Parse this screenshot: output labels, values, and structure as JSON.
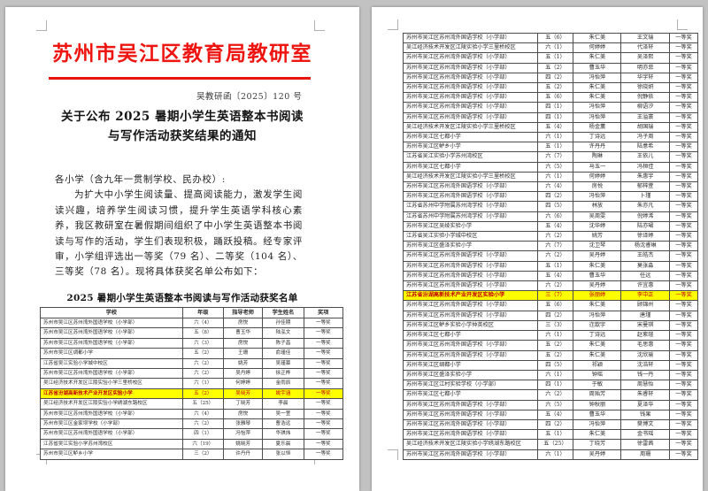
{
  "colors": {
    "header_red": "#e8130c",
    "highlight_bg": "#ffff00",
    "highlight_text": "#c00000"
  },
  "page1": {
    "agency_title": "苏州市吴江区教育局教研室",
    "doc_number": "吴教研函〔2025〕120 号",
    "title_line1": "关于公布 2025 暑期小学生英语整本书阅读",
    "title_line2": "与写作活动获奖结果的通知",
    "salutation": "各小学（含九年一贯制学校、民办校）:",
    "paragraph": "为扩大中小学生阅读量、提高阅读能力，激发学生阅读兴趣，培养学生阅读习惯，提升学生英语学科核心素养，我区教研室在暑假期间组织了中小学生英语整本书阅读与写作的活动，学生们表现积极，踊跃投稿。经专家评审，小学组评选出一等奖（79 名）、二等奖（104 名）、三等奖（78 名）。现将具体获奖名单公布如下：",
    "table_title": "2025 暑期小学生英语整本书阅读与写作活动获奖名单",
    "table": {
      "headers": [
        "学校",
        "年级",
        "指导老师",
        "学生姓名",
        "奖项"
      ],
      "highlight_index": 7,
      "rows": [
        [
          "苏州市吴江区苏州湾外国语学校（小学部）",
          "六（4）",
          "房悦",
          "孙佳期",
          "一等奖"
        ],
        [
          "苏州市吴江区苏州湾外国语学校（小学部）",
          "五（8）",
          "曹玉华",
          "陆泓文",
          "一等奖"
        ],
        [
          "苏州市吴江区苏州湾外国语学校（小学部）",
          "六（3）",
          "房悦",
          "陈子昌",
          "一等奖"
        ],
        [
          "苏州市吴江区绸都小学",
          "五（2）",
          "王珊",
          "俞瑾佳",
          "一等奖"
        ],
        [
          "江苏省吴江实验小学城中校区",
          "六（2）",
          "姚芳",
          "吴瑾慕",
          "一等奖"
        ],
        [
          "苏州市吴江区苏州湾外国语学校（小学部）",
          "六（2）",
          "吴丹婷",
          "徐正桦",
          "一等奖"
        ],
        [
          "吴江经济技术开发区江陵实验小学三里桥校区",
          "六（1）",
          "何婷婷",
          "金雨辰",
          "一等奖"
        ],
        [
          "江苏省汾湖高新技术产业开发区实验小学",
          "五（2）",
          "吴晓芳",
          "姚宇涵",
          "一等奖"
        ],
        [
          "吴江经济技术开发区江陵实验小学绣湖东路校区",
          "五（25）",
          "丁晓芳",
          "李晨",
          "一等奖"
        ],
        [
          "苏州市吴江区苏州湾外国语学校（小学部）",
          "六（4）",
          "房悦",
          "吴一萱",
          "一等奖"
        ],
        [
          "苏州市吴江区金家坝学校（小学部）",
          "六（2）",
          "张雅琴",
          "曹浩远",
          "一等奖"
        ],
        [
          "苏州市吴江区苏州湾外国语学校（小学部）",
          "四（1）",
          "冯怡萍",
          "华琪炜",
          "一等奖"
        ],
        [
          "江苏省吴江实验小学苏州湾校区",
          "六（19）",
          "姚晓芳",
          "夏乐晨",
          "一等奖"
        ],
        [
          "苏州市吴江区鲈乡小学",
          "三（2）",
          "许丹丹",
          "张以恒",
          "一等奖"
        ]
      ]
    }
  },
  "page2": {
    "table": {
      "highlight_index": 26,
      "rows": [
        [
          "苏州市吴江区苏州湾外国语学校（小学部）",
          "五（6）",
          "朱仁美",
          "王文瑞",
          "一等奖"
        ],
        [
          "吴江经济技术开发区江陵实验小学三里桥校区",
          "六（1）",
          "何婷婷",
          "代泽轩",
          "一等奖"
        ],
        [
          "苏州市吴江区苏州湾外国语学校（小学部）",
          "五（1）",
          "朱仁美",
          "吴泽熙",
          "一等奖"
        ],
        [
          "苏州市吴江区苏州湾外国语学校（小学部）",
          "五（2）",
          "曹玉华",
          "明亦菲",
          "一等奖"
        ],
        [
          "苏州市吴江区苏州湾外国语学校（小学部）",
          "四（2）",
          "冯怡萍",
          "华宇轩",
          "一等奖"
        ],
        [
          "苏州市吴江区苏州湾外国语学校（小学部）",
          "五（2）",
          "朱仁美",
          "徐晓妍",
          "一等奖"
        ],
        [
          "苏州市吴江区苏州湾外国语学校（小学部）",
          "五（6）",
          "朱仁美",
          "倪静依",
          "一等奖"
        ],
        [
          "苏州市吴江区苏州湾外国语学校（小学部）",
          "四（1）",
          "冯怡萍",
          "柳语汐",
          "一等奖"
        ],
        [
          "苏州市吴江区苏州湾外国语学校（小学部）",
          "四（1）",
          "冯怡萍",
          "王溢寰",
          "一等奖"
        ],
        [
          "吴江经济技术开发区江陵实验小学三里桥校区",
          "五（4）",
          "杨金薰",
          "胡国瑞",
          "一等奖"
        ],
        [
          "苏州市吴江区七都小学",
          "六（1）",
          "丁诗远",
          "冯子周",
          "一等奖"
        ],
        [
          "苏州市吴江区鲈乡小学",
          "五（1）",
          "许丹丹",
          "陆意希",
          "一等奖"
        ],
        [
          "江苏省吴江实验小学苏州湾校区",
          "六（7）",
          "陶琳",
          "王依儿",
          "一等奖"
        ],
        [
          "苏州市吴江区七都小学",
          "六（5）",
          "马玉一",
          "冯桓佳",
          "一等奖"
        ],
        [
          "吴江经济技术开发区江陵实验小学三里桥校区",
          "六（1）",
          "何婷婷",
          "朱惠宇",
          "一等奖"
        ],
        [
          "苏州市吴江区苏州湾外国语学校（小学部）",
          "六（4）",
          "房悦",
          "郁梓萱",
          "一等奖"
        ],
        [
          "苏州市吴江区苏州湾外国语学校（小学部）",
          "四（2）",
          "冯怡萍",
          "卜瑾",
          "一等奖"
        ],
        [
          "江苏省苏州中学附属苏州湾学校（小学部）",
          "四（5）",
          "林放",
          "朱亦凡",
          "一等奖"
        ],
        [
          "江苏省苏州中学附属苏州湾学校（小学部）",
          "六（6）",
          "吴周雯",
          "倪婷浠",
          "一等奖"
        ],
        [
          "苏州市吴江区吴绫实验小学",
          "五（4）",
          "沈华婷",
          "陆亦珺",
          "一等奖"
        ],
        [
          "江苏省吴江实验小学城中校区",
          "六（2）",
          "姚芳",
          "徐译婷",
          "一等奖"
        ],
        [
          "苏州市吴江区盛泽实验小学",
          "六（7）",
          "沈卫琴",
          "杨沈睿琳",
          "一等奖"
        ],
        [
          "苏州市吴江区苏州湾外国语学校（小学部）",
          "六（2）",
          "吴丹婷",
          "王皓杰",
          "一等奖"
        ],
        [
          "苏州市吴江区苏州湾外国语学校（小学部）",
          "五（1）",
          "朱仁美",
          "莫张淼",
          "一等奖"
        ],
        [
          "苏州市吴江区苏州湾外国语学校（小学部）",
          "五（4）",
          "曹玉华",
          "任远",
          "一等奖"
        ],
        [
          "苏州市吴江区苏州湾外国语学校（小学部）",
          "六（2）",
          "吴丹婷",
          "许宜惠",
          "一等奖"
        ],
        [
          "江苏省汾湖高新技术产业开发区实验小学",
          "三（7）",
          "张丽婷",
          "李中正",
          "一等奖"
        ],
        [
          "苏州市吴江区苏州湾外国语学校（小学部）",
          "五（6）",
          "朱仁美",
          "顾锦州",
          "一等奖"
        ],
        [
          "苏州市吴江区苏州湾外国语学校（小学部）",
          "四（2）",
          "冯怡萍",
          "唐瑾",
          "一等奖"
        ],
        [
          "苏州市吴江区鲈乡实验小学仲英校区",
          "三（3）",
          "迮歆宇",
          "宋曼琪",
          "一等奖"
        ],
        [
          "苏州市吴江区七都小学",
          "六（1）",
          "丁诗远",
          "赵紫瑄",
          "一等奖"
        ],
        [
          "苏州市吴江区苏州湾外国语学校（小学部）",
          "五（2）",
          "朱仁美",
          "毛思惠",
          "一等奖"
        ],
        [
          "苏州市吴江区苏州湾外国语学校（小学部）",
          "五（2）",
          "朱仁美",
          "沈欣瑜",
          "一等奖"
        ],
        [
          "苏州市吴江区绸都小学",
          "四（5）",
          "祁颖",
          "沈浩轩",
          "一等奖"
        ],
        [
          "苏州市吴江区盛泽实验小学",
          "六（1）",
          "钟瑶",
          "钱一丹",
          "一等奖"
        ],
        [
          "苏州市吴江区江村实验学校（小学部）",
          "四（1）",
          "于敏",
          "周慧怡",
          "一等奖"
        ],
        [
          "苏州市吴江区七都小学",
          "六（2）",
          "周贻芳",
          "朱睿轩",
          "一等奖"
        ],
        [
          "苏州市吴江区苏州湾外国语学校（小学部）",
          "六（5）",
          "钟秋丽",
          "夏泽华",
          "一等奖"
        ],
        [
          "苏州市吴江区苏州湾外国语学校（小学部）",
          "五（4）",
          "曹玉华",
          "钱果",
          "一等奖"
        ],
        [
          "苏州市吴江区苏州湾外国语学校（小学部）",
          "四（2）",
          "冯怡萍",
          "樊博文",
          "一等奖"
        ],
        [
          "苏州市吴江区苏州湾外国语学校（小学部）",
          "五（1）",
          "朱仁美",
          "金书瑶",
          "一等奖"
        ],
        [
          "吴江经济技术开发区江陵实验小学绣湖东路校区",
          "五（25）",
          "丁晓芳",
          "徐雷茜",
          "一等奖"
        ],
        [
          "苏州市吴江区苏州湾外国语学校（小学部）",
          "六（1）",
          "吴丹婷",
          "周珊",
          "一等奖"
        ]
      ]
    }
  }
}
